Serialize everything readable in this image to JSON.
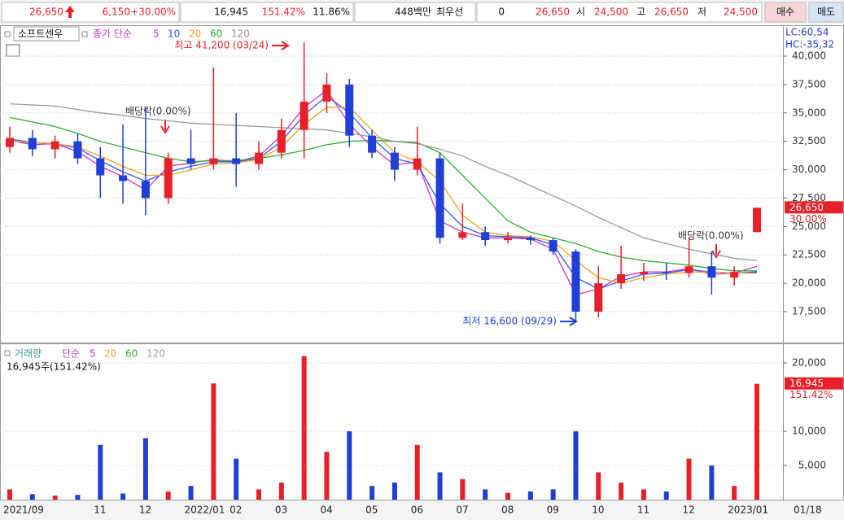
{
  "header": {
    "price": "26,650",
    "change": "6,150",
    "change_rate": "+30.00%",
    "volume": "16,945",
    "volume_rate": "151.42%",
    "turnover": "11.86%",
    "amount": "448백만",
    "best_label": "최우선",
    "best_qty": "0",
    "best_price": "26,650",
    "open_label": "시",
    "open": "24,500",
    "high_label": "고",
    "high": "26,650",
    "low_label": "저",
    "low": "24,500",
    "buy": "매수",
    "sell": "매도"
  },
  "chart_data": [
    {
      "type": "candlestick",
      "title": "소프트센우",
      "legend_label": "종가 단순",
      "categories": [
        "2021/09",
        null,
        null,
        null,
        "11",
        null,
        "12",
        null,
        "2022/01",
        null,
        "02",
        null,
        "03",
        null,
        "04",
        null,
        "05",
        null,
        "06",
        null,
        "07",
        null,
        "08",
        null,
        "09",
        null,
        "10",
        null,
        "11",
        null,
        "12",
        null,
        "2023/01",
        null
      ],
      "cursor_label": "01/18",
      "open": [
        32000,
        32800,
        31800,
        32500,
        31000,
        29500,
        29000,
        27500,
        31000,
        30500,
        31000,
        30500,
        31500,
        33500,
        36000,
        37500,
        33000,
        31500,
        30000,
        31000,
        24000,
        24500,
        23800,
        24000,
        23800,
        22800,
        17500,
        20000,
        20800,
        21000,
        20900,
        21500,
        20500,
        24500
      ],
      "high": [
        33800,
        33500,
        33000,
        33200,
        32000,
        34000,
        35500,
        31500,
        33500,
        39000,
        35000,
        32500,
        34500,
        41200,
        38500,
        38000,
        33500,
        32000,
        33800,
        31500,
        27000,
        25000,
        24500,
        24200,
        24000,
        23000,
        21500,
        23300,
        21800,
        21800,
        24000,
        22800,
        21500,
        26650
      ],
      "low": [
        31500,
        31200,
        31000,
        30500,
        27500,
        27000,
        26000,
        27000,
        30000,
        30000,
        28500,
        30000,
        31000,
        31000,
        35000,
        32000,
        31000,
        29000,
        29500,
        23500,
        23800,
        23300,
        23500,
        23400,
        22500,
        16600,
        17000,
        19500,
        20200,
        20300,
        20500,
        19000,
        19800,
        24500
      ],
      "close": [
        32800,
        31800,
        32500,
        31000,
        29500,
        29000,
        27500,
        31000,
        30500,
        31000,
        30500,
        31500,
        33500,
        36000,
        37500,
        33000,
        31500,
        30000,
        31000,
        24000,
        24500,
        23800,
        24000,
        23800,
        22800,
        17500,
        20000,
        20800,
        21000,
        20900,
        21500,
        20500,
        21000,
        26650
      ],
      "up_color": "#e8202a",
      "down_color": "#1f3fd6",
      "series": [
        {
          "name": "5",
          "color": "#cc33cc",
          "values": [
            32600,
            32200,
            32300,
            31600,
            30300,
            29400,
            28200,
            30300,
            30600,
            30900,
            30700,
            31200,
            33000,
            35500,
            37000,
            34000,
            32000,
            30400,
            30700,
            25500,
            24500,
            24000,
            24000,
            23900,
            23000,
            19000,
            19500,
            20600,
            21000,
            21000,
            21300,
            20800,
            20900,
            21500
          ]
        },
        {
          "name": "10",
          "color": "#3355ff",
          "values": [
            32700,
            32400,
            32300,
            31900,
            30800,
            29800,
            29000,
            29800,
            30300,
            30700,
            30700,
            31000,
            32500,
            34800,
            36500,
            35000,
            32800,
            31000,
            30500,
            27000,
            25000,
            24200,
            24100,
            24000,
            23400,
            20500,
            19500,
            20200,
            20800,
            20900,
            21200,
            21000,
            20900,
            21000
          ]
        },
        {
          "name": "20",
          "color": "#f0a020",
          "values": [
            32500,
            32400,
            32300,
            32000,
            31200,
            30300,
            29500,
            29500,
            30000,
            30500,
            30600,
            30900,
            32000,
            34000,
            35500,
            35500,
            33500,
            31500,
            30700,
            29000,
            26000,
            24500,
            24200,
            24100,
            23700,
            22000,
            20500,
            20000,
            20500,
            20800,
            21000,
            21000,
            20900,
            20900
          ]
        },
        {
          "name": "60",
          "color": "#33aa33",
          "values": [
            34600,
            34200,
            33800,
            33200,
            32500,
            32000,
            31500,
            31000,
            30700,
            30800,
            30800,
            31000,
            31300,
            31700,
            32200,
            32500,
            32600,
            32500,
            32400,
            31500,
            29500,
            27500,
            25500,
            24500,
            24000,
            23500,
            22800,
            22300,
            22000,
            21800,
            21600,
            21300,
            21100,
            21100
          ]
        },
        {
          "name": "120",
          "color": "#999999",
          "values": [
            35800,
            35700,
            35600,
            35300,
            35000,
            34800,
            34500,
            34300,
            34100,
            34000,
            33900,
            33800,
            33700,
            33600,
            33500,
            33200,
            32900,
            32500,
            32300,
            31800,
            31200,
            30300,
            29500,
            28600,
            27700,
            26800,
            25800,
            24900,
            24000,
            23500,
            23000,
            22600,
            22200,
            22000
          ]
        }
      ],
      "ylim": [
        14850,
        42650
      ],
      "yticks": [
        {
          "value": 17500,
          "label": "17,500"
        },
        {
          "value": 20000,
          "label": "20,000"
        },
        {
          "value": 22500,
          "label": "22,500"
        },
        {
          "value": 25000,
          "label": "25,000"
        },
        {
          "value": 27500,
          "label": "27,500"
        },
        {
          "value": 30000,
          "label": "30,000"
        },
        {
          "value": 32500,
          "label": "32,500"
        },
        {
          "value": 35000,
          "label": "35,000"
        },
        {
          "value": 37500,
          "label": "37,500"
        },
        {
          "value": 40000,
          "label": "40,000"
        }
      ],
      "grid": true,
      "lc_label": "LC:60,54",
      "hc_label": "HC:-35,32",
      "last_price_label": "26,650",
      "last_rate_label": "30.00%",
      "annotations": {
        "high": "최고 41,200 (03/24)",
        "low": "최저 16,600 (09/29)",
        "dividend_1": "배당락(0.00%)",
        "dividend_2": "배당락(0.00%)"
      }
    },
    {
      "type": "bar",
      "title": "거래량",
      "legend_label": "단순",
      "series_names": [
        "5",
        "20",
        "60",
        "120"
      ],
      "series_colors": [
        "#cc33cc",
        "#f0a020",
        "#33aa33",
        "#999999"
      ],
      "info": "16,945주(151.42%)",
      "values": [
        1500,
        800,
        600,
        700,
        8000,
        900,
        9000,
        1200,
        2000,
        17000,
        6000,
        1500,
        2500,
        21000,
        7000,
        10000,
        2000,
        2500,
        8000,
        4000,
        3000,
        1500,
        1000,
        1200,
        1500,
        10000,
        4000,
        2500,
        1500,
        1200,
        6000,
        5000,
        2000,
        16945
      ],
      "ylim": [
        0,
        22500
      ],
      "yticks": [
        {
          "value": 5000,
          "label": "5,000"
        },
        {
          "value": 10000,
          "label": "10,000"
        },
        {
          "value": 20000,
          "label": "20,000"
        }
      ],
      "grid": true,
      "last_label": "16,945",
      "last_rate_label": "151.42%"
    }
  ]
}
